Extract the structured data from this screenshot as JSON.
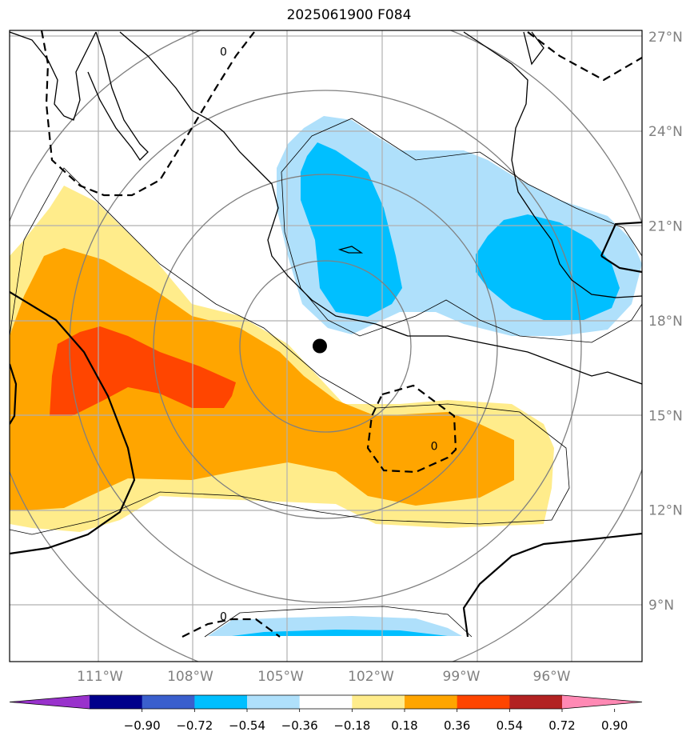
{
  "title": "2025061900 F084",
  "map": {
    "lon_range": [
      -114,
      -93
    ],
    "lat_range": [
      7.2,
      27.2
    ],
    "lon_ticks": [
      {
        "value": -111,
        "label": "111°W"
      },
      {
        "value": -108,
        "label": "108°W"
      },
      {
        "value": -105,
        "label": "105°W"
      },
      {
        "value": -102,
        "label": "102°W"
      },
      {
        "value": -99,
        "label": "99°W"
      },
      {
        "value": -96,
        "label": "96°W"
      }
    ],
    "lat_ticks": [
      {
        "value": 9,
        "label": "9°N"
      },
      {
        "value": 12,
        "label": "12°N"
      },
      {
        "value": 15,
        "label": "15°N"
      },
      {
        "value": 18,
        "label": "18°N"
      },
      {
        "value": 21,
        "label": "21°N"
      },
      {
        "value": 24,
        "label": "24°N"
      },
      {
        "value": 27,
        "label": "27°N"
      }
    ],
    "gridlines": true,
    "storm_center": {
      "lon": -103.7,
      "lat": 17.2
    },
    "contour_labels": [
      {
        "text": "0",
        "lon": -106.9,
        "lat": 26.4
      },
      {
        "text": "0",
        "lon": -99.9,
        "lat": 13.9
      },
      {
        "text": "0",
        "lon": -106.9,
        "lat": 8.5
      }
    ]
  },
  "colorbar": {
    "colors": [
      "#9932cc",
      "#00008b",
      "#3a5fcd",
      "#00bfff",
      "#afe0fb",
      "#ffffff",
      "#ffec8b",
      "#ffa500",
      "#ff4500",
      "#b22222",
      "#ff89b4"
    ],
    "ticks": [
      "−0.90",
      "−0.72",
      "−0.54",
      "−0.36",
      "−0.18",
      "0.18",
      "0.36",
      "0.54",
      "0.72",
      "0.90"
    ],
    "extend": "both"
  },
  "legend_colors": {
    "land_outline": "#000000",
    "range_rings": "#808080",
    "grid": "#b0b0b0"
  }
}
